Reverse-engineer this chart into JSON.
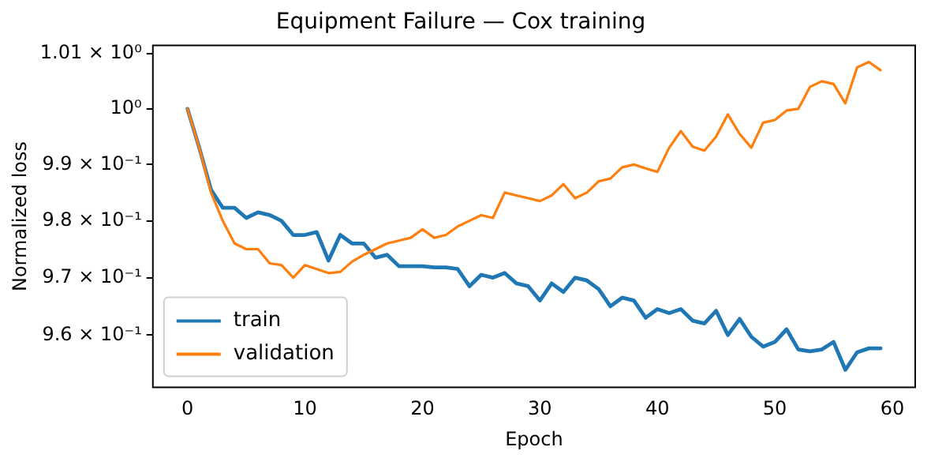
{
  "chart_data": {
    "type": "line",
    "title": "Equipment Failure — Cox training",
    "xlabel": "Epoch",
    "ylabel": "Normalized loss",
    "x": [
      0,
      1,
      2,
      3,
      4,
      5,
      6,
      7,
      8,
      9,
      10,
      11,
      12,
      13,
      14,
      15,
      16,
      17,
      18,
      19,
      20,
      21,
      22,
      23,
      24,
      25,
      26,
      27,
      28,
      29,
      30,
      31,
      32,
      33,
      34,
      35,
      36,
      37,
      38,
      39,
      40,
      41,
      42,
      43,
      44,
      45,
      46,
      47,
      48,
      49,
      50,
      51,
      52,
      53,
      54,
      55,
      56,
      57,
      58,
      59
    ],
    "series": [
      {
        "name": "train",
        "color": "#1f77b4",
        "values": [
          1.0,
          0.993,
          0.9855,
          0.9823,
          0.9823,
          0.9805,
          0.9815,
          0.981,
          0.98,
          0.9775,
          0.9775,
          0.978,
          0.973,
          0.9775,
          0.976,
          0.976,
          0.9735,
          0.974,
          0.972,
          0.972,
          0.972,
          0.9718,
          0.9718,
          0.9715,
          0.9685,
          0.9705,
          0.97,
          0.9708,
          0.969,
          0.9685,
          0.966,
          0.969,
          0.9675,
          0.97,
          0.9695,
          0.968,
          0.965,
          0.9665,
          0.966,
          0.963,
          0.9645,
          0.9638,
          0.9645,
          0.9625,
          0.962,
          0.9642,
          0.96,
          0.9628,
          0.9597,
          0.958,
          0.9588,
          0.961,
          0.9575,
          0.9572,
          0.9575,
          0.9588,
          0.954,
          0.957,
          0.9577,
          0.9577
        ]
      },
      {
        "name": "validation",
        "color": "#ff7f0e",
        "values": [
          1.0,
          0.993,
          0.985,
          0.98,
          0.976,
          0.975,
          0.975,
          0.9725,
          0.9722,
          0.97,
          0.9722,
          0.9715,
          0.9708,
          0.971,
          0.9728,
          0.974,
          0.975,
          0.976,
          0.9765,
          0.977,
          0.9785,
          0.977,
          0.9775,
          0.979,
          0.98,
          0.981,
          0.9805,
          0.985,
          0.9845,
          0.984,
          0.9835,
          0.9845,
          0.9865,
          0.984,
          0.985,
          0.987,
          0.9875,
          0.9895,
          0.99,
          0.9893,
          0.9887,
          0.993,
          0.996,
          0.9932,
          0.9925,
          0.995,
          0.999,
          0.9955,
          0.993,
          0.9975,
          0.998,
          0.9997,
          1.0,
          1.004,
          1.005,
          1.0045,
          1.001,
          1.0075,
          1.0085,
          1.007
        ]
      }
    ],
    "xlim": [
      -2.95,
      61.95
    ],
    "xticks": [
      0,
      10,
      20,
      30,
      40,
      50,
      60
    ],
    "ylim": [
      0.951,
      1.0115
    ],
    "yticks": [
      {
        "value": 0.96,
        "label": "9.6 × 10⁻¹"
      },
      {
        "value": 0.97,
        "label": "9.7 × 10⁻¹"
      },
      {
        "value": 0.98,
        "label": "9.8 × 10⁻¹"
      },
      {
        "value": 0.99,
        "label": "9.9 × 10⁻¹"
      },
      {
        "value": 1,
        "label": "10⁰"
      },
      {
        "value": 1.01,
        "label": "1.01 × 10⁰"
      }
    ],
    "log": "y",
    "grid": false,
    "legend": "bottom left",
    "marker": "none",
    "line_style": "solid"
  }
}
